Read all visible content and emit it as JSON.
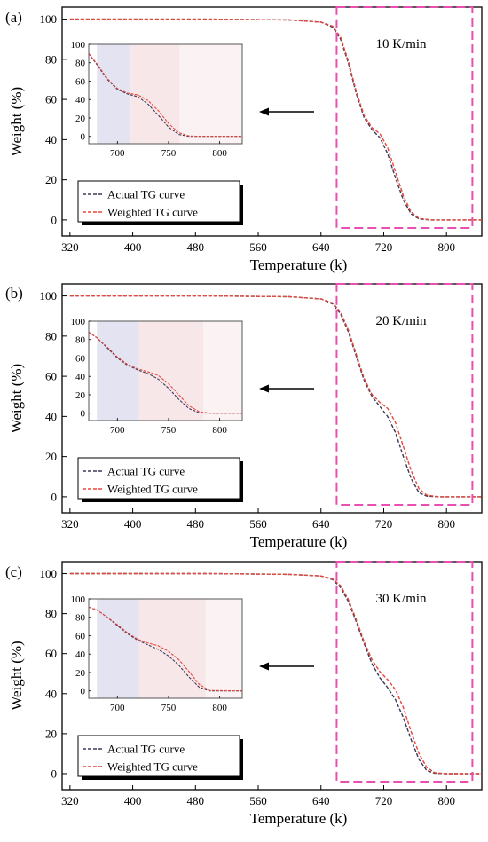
{
  "chart_data": [
    {
      "type": "line",
      "panel_label": "(a)",
      "rate_label": "10 K/min",
      "xlabel": "Temperature (k)",
      "ylabel": "Weight (%)",
      "xlim": [
        310,
        845
      ],
      "ylim": [
        -8,
        106
      ],
      "xticks": [
        320,
        400,
        480,
        560,
        640,
        720,
        800
      ],
      "yticks": [
        0,
        20,
        40,
        60,
        80,
        100
      ],
      "series": [
        {
          "name": "Actual TG curve",
          "color": "#3a3a5a",
          "style": "dashed",
          "x": [
            320,
            500,
            600,
            640,
            655,
            665,
            675,
            685,
            695,
            705,
            715,
            725,
            735,
            745,
            755,
            765,
            780,
            845
          ],
          "y": [
            100,
            100,
            99.6,
            98.5,
            96,
            90,
            78,
            63,
            51,
            45,
            41,
            33,
            21,
            10,
            3,
            0.5,
            0,
            0
          ]
        },
        {
          "name": "Weighted TG curve",
          "color": "#e8473a",
          "style": "dashed",
          "x": [
            320,
            500,
            600,
            640,
            655,
            665,
            675,
            685,
            695,
            705,
            715,
            725,
            735,
            745,
            755,
            765,
            780,
            845
          ],
          "y": [
            100,
            100,
            99.6,
            98.5,
            96.5,
            91,
            79,
            64,
            52,
            46,
            43,
            36,
            24,
            12,
            4,
            0.8,
            0,
            0
          ]
        }
      ],
      "inset": {
        "xlim": [
          672,
          822
        ],
        "ylim": [
          -8,
          100
        ],
        "xticks": [
          700,
          750,
          800
        ],
        "yticks": [
          0,
          20,
          40,
          60,
          80,
          100
        ],
        "bands": [
          {
            "x0": 680,
            "x1": 713,
            "color": "#e4e3f1"
          },
          {
            "x0": 713,
            "x1": 761,
            "color": "#f7e7e9"
          },
          {
            "x0": 761,
            "x1": 822,
            "color": "#fbf2f3"
          }
        ],
        "series": [
          {
            "x": [
              672,
              680,
              690,
              700,
              710,
              720,
              730,
              740,
              750,
              760,
              770,
              780,
              822
            ],
            "y": [
              90,
              78,
              62,
              51,
              46,
              43,
              35,
              23,
              10,
              2,
              0,
              0,
              0
            ]
          },
          {
            "x": [
              672,
              680,
              690,
              700,
              710,
              720,
              730,
              740,
              750,
              760,
              770,
              780,
              822
            ],
            "y": [
              90,
              79,
              63,
              52,
              47,
              45,
              39,
              28,
              14,
              4,
              0.5,
              0,
              0
            ]
          }
        ]
      },
      "highlight_box": {
        "x0": 660,
        "x1": 833,
        "y0": -4,
        "y1": 106
      }
    },
    {
      "type": "line",
      "panel_label": "(b)",
      "rate_label": "20 K/min",
      "xlabel": "Temperature (k)",
      "ylabel": "Weight (%)",
      "xlim": [
        310,
        845
      ],
      "ylim": [
        -8,
        106
      ],
      "xticks": [
        320,
        400,
        480,
        560,
        640,
        720,
        800
      ],
      "yticks": [
        0,
        20,
        40,
        60,
        80,
        100
      ],
      "series": [
        {
          "name": "Actual TG curve",
          "color": "#3a3a5a",
          "style": "dashed",
          "x": [
            320,
            500,
            600,
            640,
            655,
            665,
            675,
            685,
            695,
            705,
            715,
            725,
            735,
            745,
            755,
            765,
            775,
            790,
            845
          ],
          "y": [
            100,
            100,
            99.6,
            98.5,
            96,
            91,
            82,
            70,
            58,
            50,
            45,
            40,
            32,
            20,
            9,
            2,
            0.3,
            0,
            0
          ]
        },
        {
          "name": "Weighted TG curve",
          "color": "#e8473a",
          "style": "dashed",
          "x": [
            320,
            500,
            600,
            640,
            655,
            665,
            675,
            685,
            695,
            705,
            715,
            725,
            735,
            745,
            755,
            765,
            775,
            790,
            845
          ],
          "y": [
            100,
            100,
            99.6,
            98.5,
            96.5,
            92,
            83,
            71,
            59,
            51,
            47,
            44,
            37,
            25,
            13,
            4,
            0.8,
            0,
            0
          ]
        }
      ],
      "inset": {
        "xlim": [
          672,
          822
        ],
        "ylim": [
          -8,
          100
        ],
        "xticks": [
          700,
          750,
          800
        ],
        "yticks": [
          0,
          20,
          40,
          60,
          80,
          100
        ],
        "bands": [
          {
            "x0": 680,
            "x1": 721,
            "color": "#e4e3f1"
          },
          {
            "x0": 721,
            "x1": 784,
            "color": "#f7e7e9"
          },
          {
            "x0": 784,
            "x1": 822,
            "color": "#fbf2f3"
          }
        ],
        "series": [
          {
            "x": [
              672,
              680,
              690,
              700,
              710,
              720,
              730,
              740,
              750,
              760,
              770,
              780,
              790,
              822
            ],
            "y": [
              88,
              82,
              71,
              60,
              52,
              47,
              43,
              37,
              27,
              15,
              5,
              0.5,
              0,
              0
            ]
          },
          {
            "x": [
              672,
              680,
              690,
              700,
              710,
              720,
              730,
              740,
              750,
              760,
              770,
              780,
              790,
              822
            ],
            "y": [
              88,
              82,
              72,
              61,
              53,
              48,
              45,
              41,
              32,
              20,
              8,
              1.5,
              0,
              0
            ]
          }
        ]
      },
      "highlight_box": {
        "x0": 660,
        "x1": 833,
        "y0": -4,
        "y1": 106
      }
    },
    {
      "type": "line",
      "panel_label": "(c)",
      "rate_label": "30 K/min",
      "xlabel": "Temperature (k)",
      "ylabel": "Weight (%)",
      "xlim": [
        310,
        845
      ],
      "ylim": [
        -8,
        106
      ],
      "xticks": [
        320,
        400,
        480,
        560,
        640,
        720,
        800
      ],
      "yticks": [
        0,
        20,
        40,
        60,
        80,
        100
      ],
      "series": [
        {
          "name": "Actual TG curve",
          "color": "#3a3a5a",
          "style": "dashed",
          "x": [
            320,
            500,
            600,
            640,
            655,
            665,
            675,
            685,
            695,
            705,
            715,
            725,
            735,
            745,
            755,
            765,
            775,
            785,
            800,
            845
          ],
          "y": [
            100,
            100,
            99.6,
            98.8,
            97,
            93,
            86,
            76,
            65,
            55,
            48,
            43,
            37,
            28,
            17,
            7,
            1.5,
            0.2,
            0,
            0
          ]
        },
        {
          "name": "Weighted TG curve",
          "color": "#e8473a",
          "style": "dashed",
          "x": [
            320,
            500,
            600,
            640,
            655,
            665,
            675,
            685,
            695,
            705,
            715,
            725,
            735,
            745,
            755,
            765,
            775,
            785,
            800,
            845
          ],
          "y": [
            100,
            100,
            99.6,
            98.8,
            97.3,
            94,
            87,
            77,
            66,
            57,
            51,
            47,
            42,
            33,
            21,
            10,
            3,
            0.5,
            0,
            0
          ]
        }
      ],
      "inset": {
        "xlim": [
          672,
          822
        ],
        "ylim": [
          -8,
          100
        ],
        "xticks": [
          700,
          750,
          800
        ],
        "yticks": [
          0,
          20,
          40,
          60,
          80,
          100
        ],
        "bands": [
          {
            "x0": 680,
            "x1": 721,
            "color": "#e4e3f1"
          },
          {
            "x0": 721,
            "x1": 786,
            "color": "#f7e7e9"
          },
          {
            "x0": 786,
            "x1": 822,
            "color": "#fbf2f3"
          }
        ],
        "series": [
          {
            "x": [
              672,
              680,
              690,
              700,
              710,
              720,
              730,
              740,
              750,
              760,
              770,
              780,
              790,
              822
            ],
            "y": [
              91,
              88,
              80,
              71,
              62,
              55,
              50,
              45,
              38,
              28,
              15,
              4,
              0,
              0
            ]
          },
          {
            "x": [
              672,
              680,
              690,
              700,
              710,
              720,
              730,
              740,
              750,
              760,
              770,
              780,
              790,
              822
            ],
            "y": [
              91,
              88,
              80,
              72,
              63,
              56,
              52,
              49,
              43,
              34,
              21,
              7,
              0.5,
              0
            ]
          }
        ]
      },
      "highlight_box": {
        "x0": 660,
        "x1": 833,
        "y0": -4,
        "y1": 106
      }
    }
  ]
}
